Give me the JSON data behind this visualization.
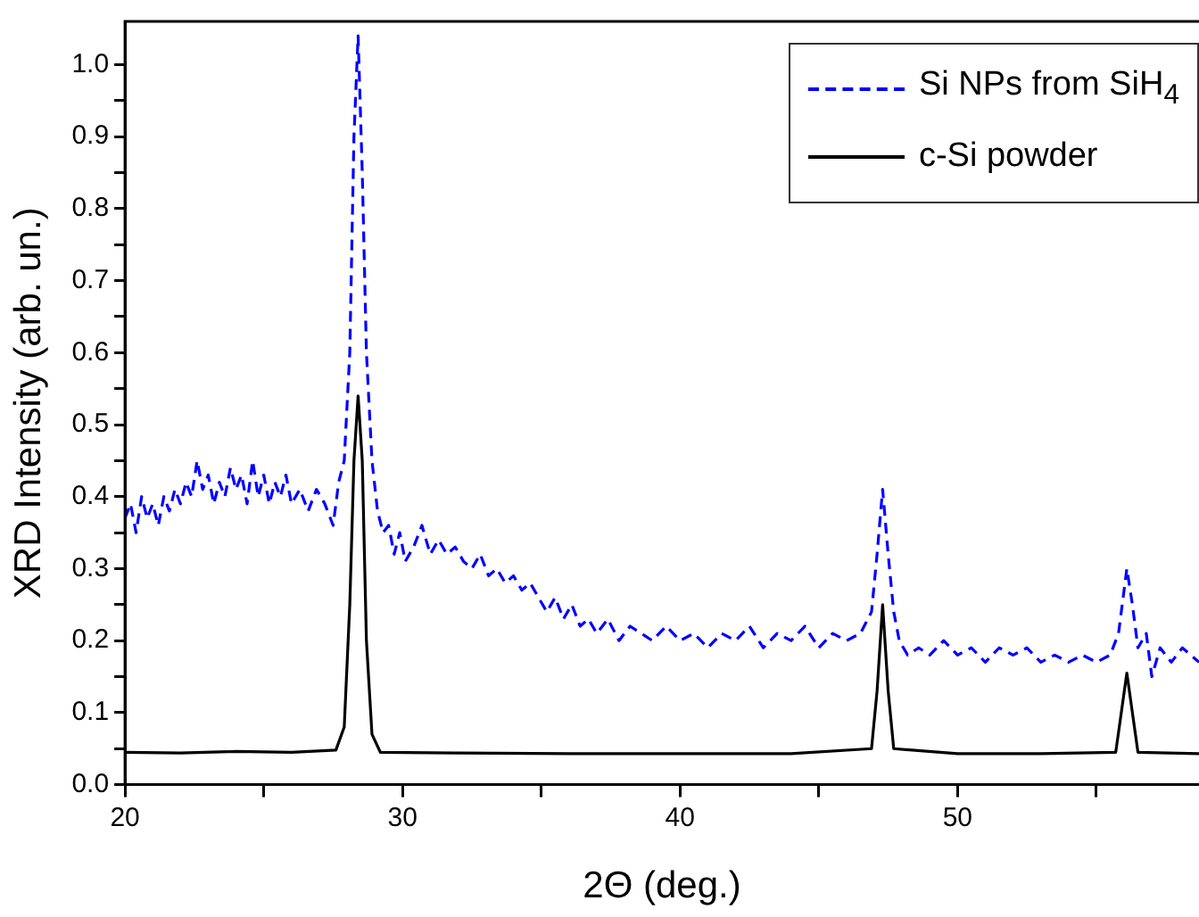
{
  "chart_data": {
    "type": "line",
    "xlabel": "2Θ (deg.)",
    "ylabel": "XRD Intensity (arb. un.)",
    "xlim": [
      20,
      58.7
    ],
    "xticks": [
      20,
      {
        "value": 25,
        "label": null
      },
      30,
      {
        "value": 35,
        "label": null
      },
      40,
      {
        "value": 45,
        "label": null
      },
      50,
      {
        "value": 55,
        "label": null
      }
    ],
    "ylim": [
      0,
      1.06
    ],
    "yticks": [
      "0.0",
      {
        "value": 0.05,
        "label": null
      },
      0.1,
      {
        "value": 0.15,
        "label": null
      },
      0.2,
      {
        "value": 0.25,
        "label": null
      },
      0.3,
      {
        "value": 0.35,
        "label": null
      },
      0.4,
      {
        "value": 0.45,
        "label": null
      },
      0.5,
      {
        "value": 0.55,
        "label": null
      },
      0.6,
      {
        "value": 0.65,
        "label": null
      },
      0.7,
      {
        "value": 0.75,
        "label": null
      },
      0.8,
      {
        "value": 0.85,
        "label": null
      },
      0.9,
      {
        "value": 0.95,
        "label": null
      },
      {
        "value": 1.0,
        "label": "1.0"
      }
    ],
    "grid": false,
    "legend": "top right",
    "marker": "none",
    "series": [
      {
        "name": "Si NPs from SiH$_{4}$",
        "color": "#0000ff",
        "line_style": "dashed",
        "x": [
          20.0,
          20.2,
          20.4,
          20.6,
          20.8,
          21.0,
          21.2,
          21.4,
          21.6,
          21.8,
          22.0,
          22.2,
          22.4,
          22.6,
          22.8,
          23.0,
          23.2,
          23.4,
          23.6,
          23.8,
          24.0,
          24.2,
          24.4,
          24.6,
          24.8,
          25.0,
          25.2,
          25.4,
          25.6,
          25.8,
          26.0,
          26.3,
          26.6,
          26.9,
          27.2,
          27.5,
          27.7,
          27.9,
          28.1,
          28.25,
          28.4,
          28.55,
          28.7,
          28.9,
          29.1,
          29.3,
          29.5,
          29.7,
          29.9,
          30.1,
          30.4,
          30.7,
          31.0,
          31.3,
          31.6,
          31.9,
          32.2,
          32.5,
          32.8,
          33.1,
          33.4,
          33.7,
          34.0,
          34.3,
          34.6,
          34.9,
          35.2,
          35.5,
          35.8,
          36.1,
          36.4,
          36.7,
          37.0,
          37.4,
          37.8,
          38.2,
          38.6,
          39.0,
          39.5,
          40.0,
          40.5,
          41.0,
          41.5,
          42.0,
          42.5,
          43.0,
          43.5,
          44.0,
          44.5,
          45.0,
          45.5,
          46.0,
          46.5,
          46.9,
          47.1,
          47.3,
          47.5,
          47.7,
          47.9,
          48.2,
          48.6,
          49.0,
          49.5,
          50.0,
          50.5,
          51.0,
          51.5,
          52.0,
          52.5,
          53.0,
          53.5,
          54.0,
          54.5,
          55.0,
          55.5,
          55.8,
          56.0,
          56.1,
          56.3,
          56.5,
          56.8,
          57.0,
          57.3,
          57.7,
          58.1,
          58.4,
          58.7
        ],
        "values": [
          0.37,
          0.39,
          0.35,
          0.4,
          0.37,
          0.39,
          0.36,
          0.4,
          0.38,
          0.41,
          0.39,
          0.42,
          0.4,
          0.45,
          0.41,
          0.43,
          0.39,
          0.42,
          0.4,
          0.44,
          0.41,
          0.43,
          0.39,
          0.45,
          0.4,
          0.43,
          0.39,
          0.42,
          0.4,
          0.43,
          0.39,
          0.41,
          0.38,
          0.41,
          0.39,
          0.36,
          0.42,
          0.45,
          0.6,
          0.9,
          1.04,
          0.85,
          0.6,
          0.45,
          0.38,
          0.35,
          0.36,
          0.32,
          0.35,
          0.31,
          0.33,
          0.36,
          0.32,
          0.34,
          0.32,
          0.33,
          0.31,
          0.3,
          0.32,
          0.29,
          0.3,
          0.28,
          0.29,
          0.27,
          0.28,
          0.26,
          0.24,
          0.26,
          0.23,
          0.25,
          0.22,
          0.23,
          0.21,
          0.23,
          0.2,
          0.22,
          0.21,
          0.2,
          0.22,
          0.2,
          0.21,
          0.19,
          0.21,
          0.2,
          0.22,
          0.19,
          0.21,
          0.2,
          0.22,
          0.19,
          0.21,
          0.2,
          0.21,
          0.24,
          0.32,
          0.41,
          0.32,
          0.24,
          0.2,
          0.18,
          0.19,
          0.18,
          0.2,
          0.18,
          0.19,
          0.17,
          0.19,
          0.18,
          0.19,
          0.17,
          0.18,
          0.17,
          0.18,
          0.17,
          0.18,
          0.21,
          0.27,
          0.3,
          0.25,
          0.19,
          0.21,
          0.15,
          0.19,
          0.17,
          0.19,
          0.18,
          0.17
        ]
      },
      {
        "name": "c-Si powder",
        "color": "#000000",
        "line_style": "solid",
        "x": [
          20,
          22,
          24,
          26,
          27.6,
          27.9,
          28.1,
          28.25,
          28.4,
          28.55,
          28.7,
          28.9,
          29.2,
          32,
          36,
          40,
          44,
          46.9,
          47.1,
          47.3,
          47.5,
          47.7,
          50,
          53,
          55.7,
          55.9,
          56.1,
          56.3,
          56.5,
          58.7
        ],
        "values": [
          0.045,
          0.044,
          0.046,
          0.045,
          0.048,
          0.08,
          0.25,
          0.45,
          0.54,
          0.45,
          0.2,
          0.07,
          0.045,
          0.044,
          0.043,
          0.043,
          0.043,
          0.05,
          0.13,
          0.25,
          0.13,
          0.05,
          0.043,
          0.043,
          0.045,
          0.1,
          0.155,
          0.1,
          0.045,
          0.043
        ]
      }
    ]
  }
}
